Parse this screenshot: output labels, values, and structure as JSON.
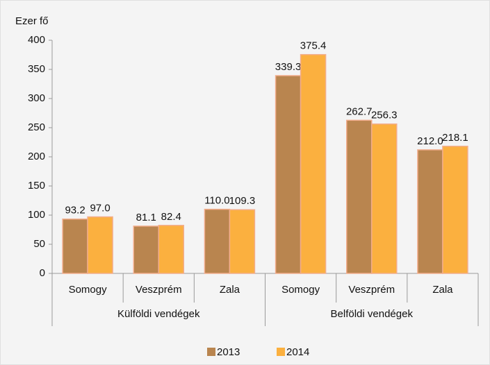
{
  "chart_data": {
    "type": "bar",
    "y_label": "Ezer fő",
    "groups": [
      {
        "name": "Külföldi vendégek",
        "categories": [
          "Somogy",
          "Veszprém",
          "Zala"
        ]
      },
      {
        "name": "Belföldi vendégek",
        "categories": [
          "Somogy",
          "Veszprém",
          "Zala"
        ]
      }
    ],
    "series": [
      {
        "name": "2013",
        "color": "#b9854f",
        "values": [
          93.2,
          81.1,
          110,
          339.3,
          262.7,
          212
        ],
        "value_labels": [
          "93.2",
          "81.1",
          "110.0",
          "339.3",
          "262.7",
          "212.0"
        ]
      },
      {
        "name": "2014",
        "color": "#fbb03f",
        "values": [
          97,
          82.4,
          109.3,
          375.4,
          256.3,
          218.1
        ],
        "value_labels": [
          "97.0",
          "82.4",
          "109.3",
          "375.4",
          "256.3",
          "218.1"
        ]
      }
    ],
    "edgecolor": "#f2ad8c",
    "ylim": [
      0,
      400
    ],
    "yticks": [
      0,
      50,
      100,
      150,
      200,
      250,
      300,
      350,
      400
    ],
    "grid": false,
    "legend": "bottom"
  }
}
